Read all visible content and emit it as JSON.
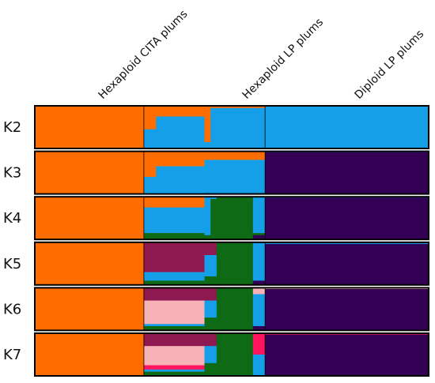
{
  "chart_data": {
    "type": "bar",
    "subtype": "stacked-ancestry (STRUCTURE) plot",
    "title": "",
    "xlabel": "",
    "ylabel": "",
    "ylim": [
      0,
      1
    ],
    "groups": [
      {
        "name": "Hexaploid CITA plums",
        "n": 18
      },
      {
        "name": "Hexaploid LP plums",
        "n": 20
      },
      {
        "name": "Diploid LP plums",
        "n": 27
      }
    ],
    "clusters": {
      "orange": "#ff6d00",
      "blue": "#149fe8",
      "purple": "#330055",
      "green": "#0e6a14",
      "maroon": "#8e1850",
      "pink": "#f7b2b8",
      "red": "#ff1460"
    },
    "panels": [
      {
        "label": "K2",
        "order": [
          "orange",
          "blue"
        ],
        "segments": [
          {
            "from": 0,
            "to": 17,
            "values": [
              1.0,
              0.0
            ]
          },
          {
            "from": 18,
            "to": 19,
            "values": [
              0.55,
              0.45
            ]
          },
          {
            "from": 20,
            "to": 27,
            "values": [
              0.25,
              0.75
            ]
          },
          {
            "from": 28,
            "to": 28,
            "values": [
              0.85,
              0.15
            ]
          },
          {
            "from": 29,
            "to": 37,
            "values": [
              0.05,
              0.95
            ]
          },
          {
            "from": 38,
            "to": 64,
            "values": [
              0.0,
              1.0
            ]
          }
        ]
      },
      {
        "label": "K3",
        "order": [
          "orange",
          "blue",
          "purple"
        ],
        "segments": [
          {
            "from": 0,
            "to": 17,
            "values": [
              1.0,
              0.0,
              0.0
            ]
          },
          {
            "from": 18,
            "to": 19,
            "values": [
              0.6,
              0.4,
              0.0
            ]
          },
          {
            "from": 20,
            "to": 27,
            "values": [
              0.35,
              0.65,
              0.0
            ]
          },
          {
            "from": 28,
            "to": 37,
            "values": [
              0.2,
              0.78,
              0.02
            ]
          },
          {
            "from": 38,
            "to": 64,
            "values": [
              0.0,
              0.02,
              0.98
            ]
          }
        ]
      },
      {
        "label": "K4",
        "order": [
          "orange",
          "blue",
          "green",
          "purple"
        ],
        "segments": [
          {
            "from": 0,
            "to": 17,
            "values": [
              1.0,
              0.0,
              0.0,
              0.0
            ]
          },
          {
            "from": 18,
            "to": 27,
            "values": [
              0.25,
              0.6,
              0.15,
              0.0
            ]
          },
          {
            "from": 28,
            "to": 28,
            "values": [
              0.0,
              0.9,
              0.1,
              0.0
            ]
          },
          {
            "from": 29,
            "to": 29,
            "values": [
              0.0,
              0.05,
              0.95,
              0.0
            ]
          },
          {
            "from": 30,
            "to": 35,
            "values": [
              0.0,
              0.0,
              1.0,
              0.0
            ]
          },
          {
            "from": 36,
            "to": 37,
            "values": [
              0.0,
              0.85,
              0.05,
              0.1
            ]
          },
          {
            "from": 38,
            "to": 64,
            "values": [
              0.0,
              0.02,
              0.0,
              0.98
            ]
          }
        ]
      },
      {
        "label": "K5",
        "order": [
          "orange",
          "maroon",
          "blue",
          "green",
          "purple"
        ],
        "segments": [
          {
            "from": 0,
            "to": 17,
            "values": [
              1.0,
              0.0,
              0.0,
              0.0,
              0.0
            ]
          },
          {
            "from": 18,
            "to": 27,
            "values": [
              0.0,
              0.7,
              0.2,
              0.1,
              0.0
            ]
          },
          {
            "from": 28,
            "to": 29,
            "values": [
              0.0,
              0.3,
              0.5,
              0.2,
              0.0
            ]
          },
          {
            "from": 30,
            "to": 35,
            "values": [
              0.0,
              0.0,
              0.0,
              1.0,
              0.0
            ]
          },
          {
            "from": 36,
            "to": 37,
            "values": [
              0.0,
              0.0,
              0.9,
              0.0,
              0.1
            ]
          },
          {
            "from": 38,
            "to": 64,
            "values": [
              0.0,
              0.02,
              0.02,
              0.0,
              0.96
            ]
          }
        ]
      },
      {
        "label": "K6",
        "order": [
          "orange",
          "maroon",
          "pink",
          "blue",
          "green",
          "purple"
        ],
        "segments": [
          {
            "from": 0,
            "to": 17,
            "values": [
              1.0,
              0.0,
              0.0,
              0.0,
              0.0,
              0.0
            ]
          },
          {
            "from": 18,
            "to": 27,
            "values": [
              0.0,
              0.3,
              0.55,
              0.05,
              0.1,
              0.0
            ]
          },
          {
            "from": 28,
            "to": 29,
            "values": [
              0.0,
              0.3,
              0.0,
              0.4,
              0.3,
              0.0
            ]
          },
          {
            "from": 30,
            "to": 35,
            "values": [
              0.0,
              0.0,
              0.0,
              0.0,
              1.0,
              0.0
            ]
          },
          {
            "from": 36,
            "to": 37,
            "values": [
              0.0,
              0.0,
              0.15,
              0.75,
              0.0,
              0.1
            ]
          },
          {
            "from": 38,
            "to": 64,
            "values": [
              0.0,
              0.0,
              0.03,
              0.0,
              0.0,
              0.97
            ]
          }
        ]
      },
      {
        "label": "K7",
        "order": [
          "orange",
          "maroon",
          "pink",
          "red",
          "blue",
          "green",
          "purple"
        ],
        "segments": [
          {
            "from": 0,
            "to": 17,
            "values": [
              1.0,
              0.0,
              0.0,
              0.0,
              0.0,
              0.0,
              0.0
            ]
          },
          {
            "from": 18,
            "to": 27,
            "values": [
              0.0,
              0.3,
              0.45,
              0.1,
              0.05,
              0.1,
              0.0
            ]
          },
          {
            "from": 28,
            "to": 29,
            "values": [
              0.0,
              0.3,
              0.0,
              0.0,
              0.4,
              0.3,
              0.0
            ]
          },
          {
            "from": 30,
            "to": 35,
            "values": [
              0.0,
              0.0,
              0.0,
              0.0,
              0.0,
              1.0,
              0.0
            ]
          },
          {
            "from": 36,
            "to": 37,
            "values": [
              0.0,
              0.0,
              0.0,
              0.5,
              0.5,
              0.0,
              0.0
            ]
          },
          {
            "from": 38,
            "to": 64,
            "values": [
              0.0,
              0.0,
              0.0,
              0.03,
              0.0,
              0.0,
              0.97
            ]
          }
        ]
      }
    ]
  }
}
